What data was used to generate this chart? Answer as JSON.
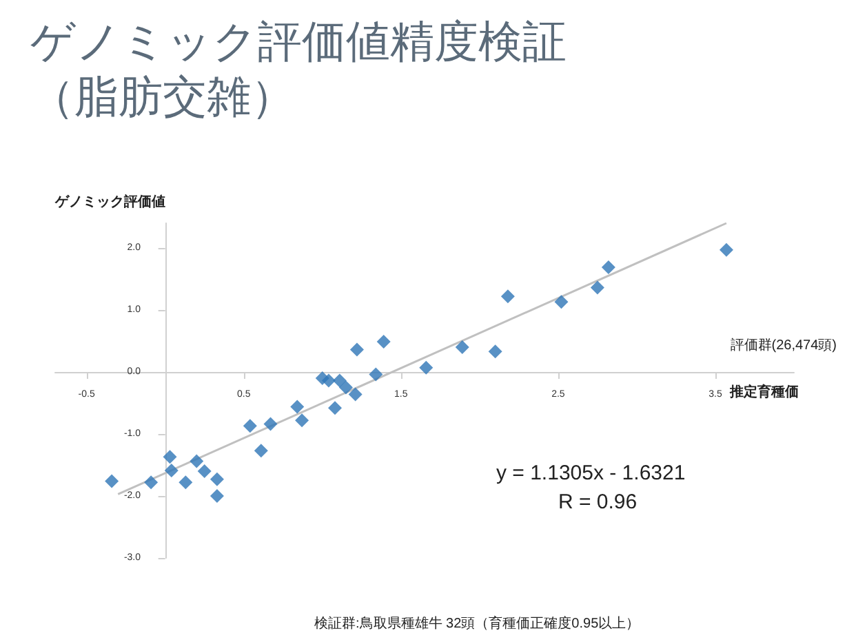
{
  "chart_data": {
    "type": "scatter",
    "title": "ゲノミック評価値精度検証（脂肪交雑）",
    "xlabel": "推定育種価",
    "ylabel": "ゲノミック評価値",
    "annotations": [
      "評価群(26,474頭)",
      "y = 1.1305x - 1.6321",
      "R = 0.96",
      "検証群:鳥取県種雄牛 32頭（育種価正確度0.95以上）"
    ],
    "xlim": [
      -0.7,
      4.0
    ],
    "xticks": [
      -0.5,
      0.5,
      1.5,
      2.5,
      3.5
    ],
    "ylim": [
      -3.0,
      2.4
    ],
    "yticks": [
      {
        "value": -3,
        "label": "-3.0"
      },
      {
        "value": -2,
        "label": "-2.0"
      },
      {
        "value": -1,
        "label": "-1.0"
      },
      {
        "value": 0,
        "label": "0.0"
      },
      {
        "value": 1,
        "label": "1.0"
      },
      {
        "value": 2,
        "label": "2.0"
      }
    ],
    "grid": false,
    "marker": "diamond",
    "series": [
      {
        "color": "#2e75b6",
        "x": [
          3.57,
          2.82,
          2.75,
          2.52,
          2.18,
          2.1,
          1.89,
          1.66,
          1.39,
          1.22,
          1.34,
          1.04,
          1.11,
          1.0,
          1.15,
          1.21,
          1.08,
          0.84,
          0.87,
          0.67,
          0.54,
          0.61,
          0.03,
          0.2,
          -0.09,
          -0.34,
          0.04,
          0.13,
          0.25,
          0.33,
          0.33
        ],
        "values": [
          1.97,
          1.69,
          1.36,
          1.13,
          1.22,
          0.33,
          0.4,
          0.07,
          0.49,
          0.36,
          -0.04,
          -0.14,
          -0.14,
          -0.1,
          -0.25,
          -0.36,
          -0.58,
          -0.56,
          -0.78,
          -0.84,
          -0.87,
          -1.27,
          -1.37,
          -1.44,
          -1.78,
          -1.76,
          -1.59,
          -1.78,
          -1.6,
          -1.73,
          -2.0
        ]
      },
      {
        "type": "line",
        "color": "#c0c0c0",
        "marker": "none",
        "x": [
          -0.3,
          3.57
        ],
        "values": [
          -1.97,
          2.4
        ]
      }
    ]
  }
}
